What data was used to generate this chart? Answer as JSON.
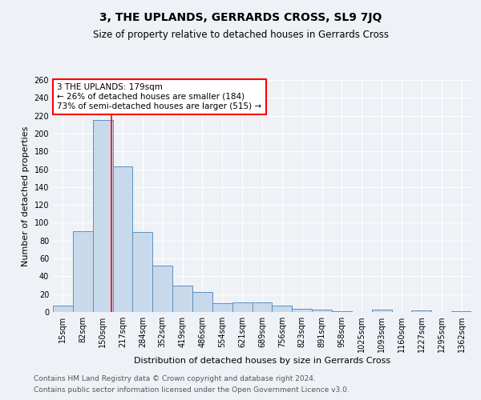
{
  "title": "3, THE UPLANDS, GERRARDS CROSS, SL9 7JQ",
  "subtitle": "Size of property relative to detached houses in Gerrards Cross",
  "xlabel": "Distribution of detached houses by size in Gerrards Cross",
  "ylabel": "Number of detached properties",
  "categories": [
    "15sqm",
    "82sqm",
    "150sqm",
    "217sqm",
    "284sqm",
    "352sqm",
    "419sqm",
    "486sqm",
    "554sqm",
    "621sqm",
    "689sqm",
    "756sqm",
    "823sqm",
    "891sqm",
    "958sqm",
    "1025sqm",
    "1093sqm",
    "1160sqm",
    "1227sqm",
    "1295sqm",
    "1362sqm"
  ],
  "values": [
    7,
    91,
    215,
    163,
    90,
    52,
    30,
    22,
    10,
    11,
    11,
    7,
    4,
    3,
    1,
    0,
    3,
    0,
    2,
    0,
    1
  ],
  "bar_color": "#c9d9ec",
  "bar_edge_color": "#5a90c0",
  "red_line_x": 2.43,
  "annotation_text": "3 THE UPLANDS: 179sqm\n← 26% of detached houses are smaller (184)\n73% of semi-detached houses are larger (515) →",
  "annotation_box_color": "white",
  "annotation_box_edge_color": "red",
  "ylim": [
    0,
    260
  ],
  "yticks": [
    0,
    20,
    40,
    60,
    80,
    100,
    120,
    140,
    160,
    180,
    200,
    220,
    240,
    260
  ],
  "footer1": "Contains HM Land Registry data © Crown copyright and database right 2024.",
  "footer2": "Contains public sector information licensed under the Open Government Licence v3.0.",
  "background_color": "#eef2f7",
  "grid_color": "#ffffff",
  "title_fontsize": 10,
  "subtitle_fontsize": 8.5,
  "axis_label_fontsize": 8,
  "tick_fontsize": 7,
  "annotation_fontsize": 7.5,
  "footer_fontsize": 6.5
}
